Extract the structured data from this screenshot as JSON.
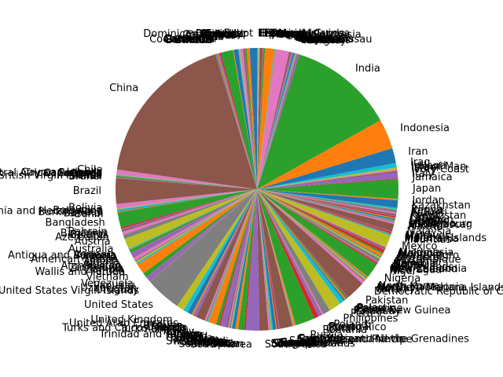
{
  "chart_data": {
    "type": "pie",
    "title": "",
    "start_angle_deg": 106,
    "palette": [
      "#1f77b4",
      "#ff7f0e",
      "#2ca02c",
      "#d62728",
      "#9467bd",
      "#8c564b",
      "#e377c2",
      "#7f7f7f",
      "#bcbd22",
      "#17becf"
    ],
    "labels": [
      "Cook Islands",
      "Barbados",
      "Belize",
      "Bermuda",
      "Bhutan",
      "China",
      "Chile",
      "Cayman Islands",
      "Central African Republic",
      "Comoros",
      "Cape Verde",
      "Congo",
      "Cuba",
      "British Virgin Islands",
      "Brunei",
      "Brazil",
      "Bolivia",
      "Botswana",
      "Bosnia and Herzegovina",
      "Burkina Faso",
      "Burundi",
      "Benin",
      "Bangladesh",
      "Bahrain",
      "Bahamas",
      "Belarus",
      "Azerbaijan",
      "Austria",
      "Australia",
      "Armenia",
      "Antigua and Barbuda",
      "Andorra",
      "Angola",
      "American Samoa",
      "Algeria",
      "Albania",
      "Afghanistan",
      "Zimbabwe",
      "Zambia",
      "Yemen",
      "Wallis and Futuna",
      "Vietnam",
      "Venezuela",
      "Vanuatu",
      "Uzbekistan",
      "Uruguay",
      "United States Virgin Islands",
      "United States",
      "United Kingdom",
      "United Arab Emirates",
      "Ukraine",
      "Uganda",
      "Tuvalu",
      "Turks and Caicos Islands",
      "Turkmenistan",
      "Turkey",
      "Tunisia",
      "Trinidad and Tobago",
      "Tonga",
      "Togo",
      "Timor",
      "Thailand",
      "Tanzania",
      "Tajikistan",
      "Taiwan",
      "Syria",
      "Switzerland",
      "Sweden",
      "Eswatini",
      "Suriname",
      "Sudan",
      "Sri Lanka",
      "Spain",
      "South Sudan",
      "South Korea",
      "South Africa",
      "Somalia",
      "Solomon Islands",
      "Slovenia",
      "Slovakia",
      "Singapore",
      "Sierra Leone",
      "Seychelles",
      "Serbia",
      "Senegal",
      "Saudi Arabia",
      "Sao Tome and Principe",
      "Samoa",
      "Saint Vincent and the Grenadines",
      "Saint Lucia",
      "Saint Kitts and Nevis",
      "Rwanda",
      "Russia",
      "Romania",
      "Qatar",
      "Puerto Rico",
      "Portugal",
      "Poland",
      "Philippines",
      "Peru",
      "Paraguay",
      "Papua New Guinea",
      "Panama",
      "Palestine",
      "Palau",
      "Pakistan",
      "Democratic Republic of Congo",
      "Oman",
      "Norway",
      "Northern Mariana Islands",
      "North Macedonia",
      "North Korea",
      "Nigeria",
      "Niger",
      "Nicaragua",
      "New Zealand",
      "New Caledonia",
      "Netherlands",
      "Nepal",
      "Nauru",
      "Namibia",
      "Myanmar",
      "Mozambique",
      "Morocco",
      "Montenegro",
      "Mongolia",
      "Moldova",
      "Micronesia",
      "Mexico",
      "Mauritius",
      "Mauritania",
      "Marshall Islands",
      "Malta",
      "Mali",
      "Maldives",
      "Malaysia",
      "Malawi",
      "Madagascar",
      "Luxembourg",
      "Lithuania",
      "Libya",
      "Liberia",
      "Lesotho",
      "Lebanon",
      "Latvia",
      "Laos",
      "Kyrgyzstan",
      "Kuwait",
      "Kiribati",
      "Kenya",
      "Kazakhstan",
      "Jordan",
      "Japan",
      "Jamaica",
      "Italy",
      "Ivory Coast",
      "Israel",
      "Isle of Man",
      "Ireland",
      "Iraq",
      "Iran",
      "Indonesia",
      "India",
      "Iceland",
      "Hungary",
      "Honduras",
      "Haiti",
      "Guyana",
      "Guinea-Bissau",
      "Guinea",
      "Guatemala",
      "Guam",
      "Grenada",
      "Greenland",
      "Greece",
      "Ghana",
      "Germany",
      "Georgia",
      "Gambia",
      "Gabon",
      "French Polynesia",
      "France",
      "Finland",
      "Fiji",
      "Falkland Islands",
      "Ethiopia",
      "Estonia",
      "Eritrea",
      "Equatorial Guinea",
      "El Salvador",
      "Egypt",
      "Ecuador",
      "Dominican Republic",
      "Dominica",
      "Djibouti",
      "Denmark",
      "Czechia",
      "Cyprus",
      "Croatia",
      "Costa Rica",
      "Colombia",
      "Chad",
      "Canada",
      "Cameroon",
      "Cambodia"
    ],
    "values": [
      0.02,
      0.05,
      0.05,
      0.02,
      0.05,
      10.5,
      0.3,
      0.02,
      0.02,
      0.02,
      0.02,
      0.02,
      0.1,
      0.02,
      0.05,
      1.7,
      0.3,
      0.02,
      0.05,
      0.1,
      0.05,
      0.05,
      1.0,
      0.1,
      0.1,
      0.1,
      0.2,
      0.3,
      0.7,
      0.05,
      0.02,
      0.02,
      0.2,
      0.02,
      0.3,
      0.05,
      0.2,
      0.1,
      0.1,
      0.1,
      0.02,
      0.7,
      0.3,
      0.02,
      0.3,
      0.05,
      0.02,
      2.4,
      0.5,
      0.3,
      0.3,
      0.1,
      0.02,
      0.02,
      0.2,
      0.6,
      0.1,
      0.1,
      0.02,
      0.05,
      0.02,
      0.5,
      0.2,
      0.1,
      0.4,
      0.1,
      0.1,
      0.1,
      0.05,
      0.05,
      0.2,
      0.2,
      0.4,
      0.1,
      0.9,
      0.6,
      0.1,
      0.05,
      0.05,
      0.1,
      0.2,
      0.05,
      0.02,
      0.1,
      0.05,
      0.9,
      0.02,
      0.02,
      0.02,
      0.02,
      0.02,
      0.1,
      1.3,
      0.3,
      0.2,
      0.05,
      0.1,
      0.5,
      0.8,
      0.3,
      0.1,
      0.1,
      0.1,
      0.05,
      0.02,
      1.3,
      0.2,
      0.1,
      0.1,
      0.02,
      0.05,
      0.1,
      1.0,
      0.1,
      0.05,
      0.05,
      0.02,
      0.2,
      0.1,
      0.02,
      0.05,
      0.2,
      0.1,
      0.2,
      0.05,
      0.1,
      0.05,
      0.02,
      0.8,
      0.05,
      0.05,
      0.02,
      0.02,
      0.1,
      0.05,
      0.5,
      0.1,
      0.1,
      0.02,
      0.02,
      0.1,
      0.05,
      0.02,
      0.1,
      0.05,
      0.1,
      0.1,
      0.2,
      0.02,
      0.1,
      0.5,
      0.1,
      1.3,
      0.05,
      0.4,
      0.1,
      0.1,
      0.02,
      0.1,
      0.3,
      1.0,
      2.0,
      7.0,
      0.02,
      0.1,
      0.05,
      0.05,
      0.05,
      0.02,
      0.05,
      0.1,
      0.02,
      0.02,
      0.02,
      0.1,
      0.1,
      0.9,
      0.05,
      0.02,
      0.02,
      0.02,
      0.6,
      0.1,
      0.02,
      0.02,
      0.2,
      0.05,
      0.02,
      0.05,
      0.05,
      0.5,
      0.2,
      0.1,
      0.02,
      0.02,
      0.1,
      0.2,
      0.02,
      0.05,
      0.05,
      0.3,
      0.05,
      0.8,
      0.1,
      0.1
    ]
  }
}
